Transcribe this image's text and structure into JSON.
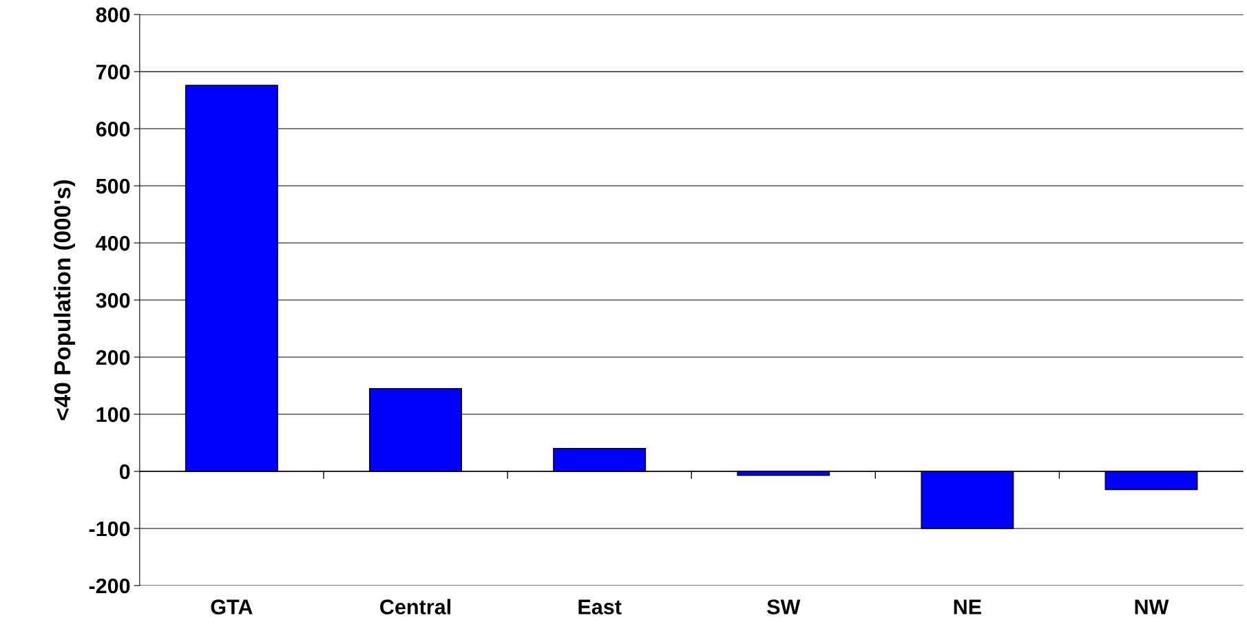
{
  "chart_data": {
    "type": "bar",
    "ylabel": "<40 Population (000's)",
    "categories": [
      "GTA",
      "Central",
      "East",
      "SW",
      "NE",
      "NW"
    ],
    "values": [
      676,
      145,
      40,
      -7,
      -100,
      -32
    ],
    "color": "#0000ff",
    "ylim": [
      -200,
      800
    ],
    "yticks": [
      -200,
      -100,
      0,
      100,
      200,
      300,
      400,
      500,
      600,
      700,
      800
    ],
    "grid": "y"
  }
}
